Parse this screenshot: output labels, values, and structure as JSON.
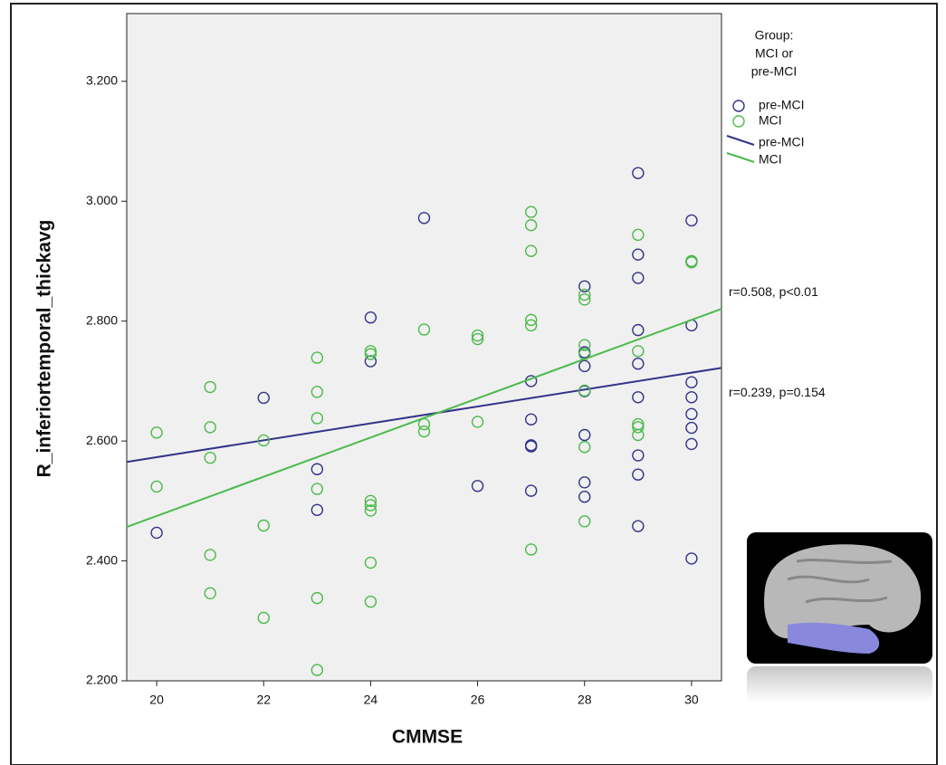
{
  "chart_data": {
    "type": "scatter",
    "xlabel": "CMMSE",
    "ylabel": "R_inferiortemporal_thickavg",
    "legend_title": [
      "Group:",
      "MCI or",
      "pre-MCI"
    ],
    "xlim": [
      19.44,
      30.56
    ],
    "ylim": [
      2.2,
      3.313
    ],
    "xticks": [
      20,
      22,
      24,
      26,
      28,
      30
    ],
    "yticks": [
      {
        "value": 2.2,
        "label": "2.200"
      },
      {
        "value": 2.4,
        "label": "2.400"
      },
      {
        "value": 2.6,
        "label": "2.600"
      },
      {
        "value": 2.8,
        "label": "2.800"
      },
      {
        "value": 3.0,
        "label": "3.000"
      },
      {
        "value": 3.2,
        "label": "3.200"
      }
    ],
    "series": [
      {
        "name": "pre-MCI",
        "color": "#33338a",
        "x": [
          20,
          22,
          23,
          23,
          24,
          24,
          25,
          26,
          27,
          27,
          27,
          27,
          27,
          28,
          28,
          28,
          28,
          28,
          28,
          28,
          29,
          29,
          29,
          29,
          29,
          29,
          29,
          29,
          29,
          30,
          30,
          30,
          30,
          30,
          30,
          30,
          30,
          30
        ],
        "values": [
          2.447,
          2.672,
          2.553,
          2.485,
          2.806,
          2.733,
          2.972,
          2.525,
          2.7,
          2.636,
          2.591,
          2.593,
          2.517,
          2.858,
          2.748,
          2.725,
          2.683,
          2.61,
          2.531,
          2.507,
          3.047,
          2.911,
          2.872,
          2.785,
          2.729,
          2.673,
          2.576,
          2.544,
          2.458,
          2.968,
          2.9,
          2.793,
          2.698,
          2.673,
          2.645,
          2.622,
          2.595,
          2.404
        ],
        "fit": {
          "x": [
            20,
            30
          ],
          "values": [
            2.573,
            2.714
          ]
        },
        "annotation": "r=0.239, p=0.154"
      },
      {
        "name": "MCI",
        "color": "#4cba4c",
        "x": [
          20,
          20,
          21,
          21,
          21,
          21,
          21,
          22,
          22,
          22,
          23,
          23,
          23,
          23,
          23,
          23,
          24,
          24,
          24,
          24,
          24,
          24,
          24,
          25,
          25,
          25,
          26,
          26,
          26,
          27,
          27,
          27,
          27,
          27,
          27,
          28,
          28,
          28,
          28,
          28,
          28,
          28,
          29,
          29,
          29,
          29,
          29,
          30,
          30
        ],
        "values": [
          2.614,
          2.524,
          2.69,
          2.623,
          2.572,
          2.41,
          2.346,
          2.601,
          2.459,
          2.305,
          2.739,
          2.682,
          2.638,
          2.52,
          2.338,
          2.218,
          2.75,
          2.745,
          2.5,
          2.493,
          2.484,
          2.397,
          2.332,
          2.786,
          2.628,
          2.616,
          2.776,
          2.77,
          2.632,
          2.982,
          2.96,
          2.917,
          2.802,
          2.793,
          2.419,
          2.844,
          2.836,
          2.76,
          2.745,
          2.684,
          2.59,
          2.466,
          2.944,
          2.75,
          2.628,
          2.623,
          2.61,
          2.9,
          2.898
        ],
        "fit": {
          "x": [
            20,
            30
          ],
          "values": [
            2.475,
            2.802
          ]
        },
        "annotation": "r=0.508, p<0.01"
      }
    ]
  }
}
